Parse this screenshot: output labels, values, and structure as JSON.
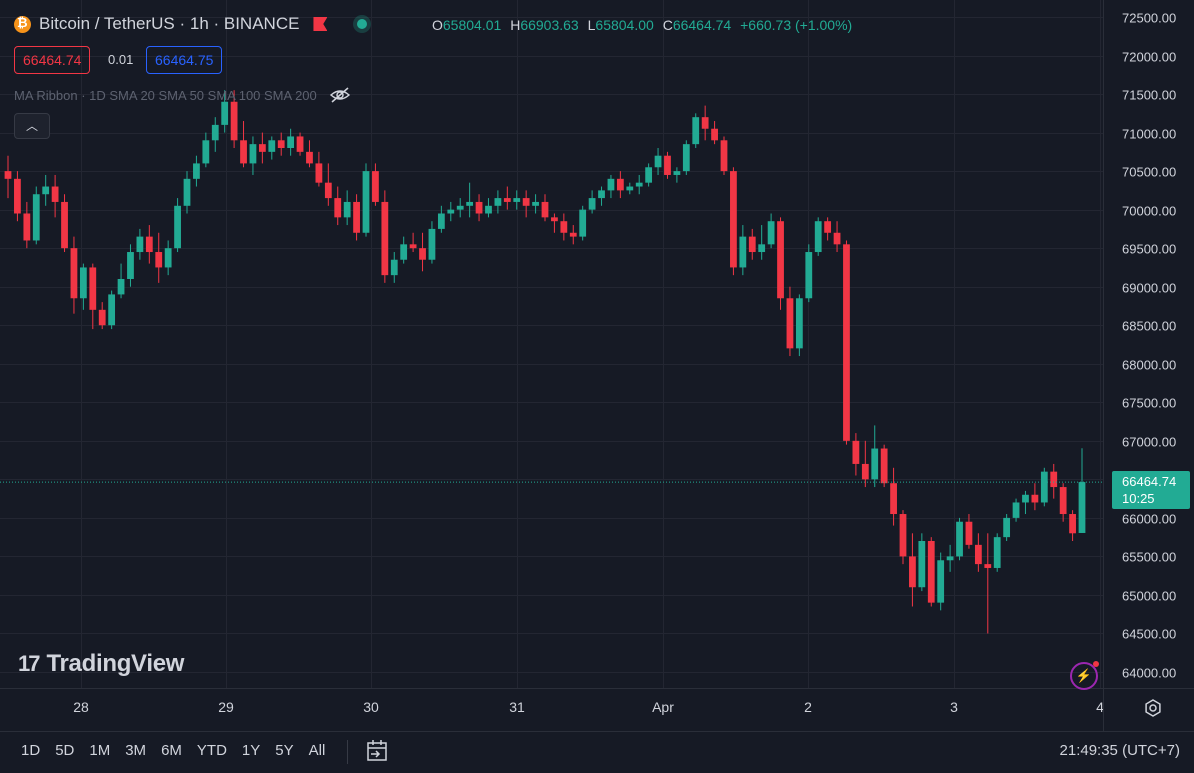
{
  "legend": {
    "symbol": "Bitcoin / TetherUS · 1h · BINANCE",
    "o_label": "O",
    "o_val": "65804.01",
    "h_label": "H",
    "h_val": "66903.63",
    "l_label": "L",
    "l_val": "65804.00",
    "c_label": "C",
    "c_val": "66464.74",
    "change": "+660.73 (+1.00%)"
  },
  "trade": {
    "sell": "66464.74",
    "spread": "0.01",
    "buy": "66464.75"
  },
  "indicator": {
    "label": "MA Ribbon · 1D SMA 20 SMA 50 SMA 100 SMA 200"
  },
  "brand": {
    "name": "TradingView"
  },
  "price_tag": {
    "price": "66464.74",
    "countdown": "10:25"
  },
  "bottom": {
    "ranges": [
      "1D",
      "5D",
      "1M",
      "3M",
      "6M",
      "YTD",
      "1Y",
      "5Y",
      "All"
    ],
    "clock": "21:49:35 (UTC+7)"
  },
  "colors": {
    "up": "#22ab94",
    "down": "#f23645",
    "bg": "#161a25",
    "grid": "#232632"
  },
  "chart_data": {
    "type": "candlestick",
    "y_ticks": [
      72500,
      72000,
      71500,
      71000,
      70500,
      70000,
      69500,
      69000,
      68500,
      68000,
      67500,
      67000,
      66500,
      66000,
      65500,
      65000,
      64500,
      64000
    ],
    "x_ticks": [
      "28",
      "29",
      "30",
      "31",
      "Apr",
      "2",
      "3",
      "4"
    ],
    "last_price": 66464.74,
    "ohlc": [
      [
        70500,
        70700,
        70150,
        70400
      ],
      [
        70400,
        70500,
        69850,
        69950
      ],
      [
        69950,
        70100,
        69500,
        69600
      ],
      [
        69600,
        70300,
        69550,
        70200
      ],
      [
        70200,
        70450,
        70050,
        70300
      ],
      [
        70300,
        70450,
        69900,
        70100
      ],
      [
        70100,
        70200,
        69450,
        69500
      ],
      [
        69500,
        69650,
        68650,
        68850
      ],
      [
        68850,
        69300,
        68700,
        69250
      ],
      [
        69250,
        69300,
        68450,
        68700
      ],
      [
        68700,
        68800,
        68450,
        68500
      ],
      [
        68500,
        68950,
        68450,
        68900
      ],
      [
        68900,
        69300,
        68850,
        69100
      ],
      [
        69100,
        69550,
        69000,
        69450
      ],
      [
        69450,
        69750,
        69350,
        69650
      ],
      [
        69650,
        69800,
        69300,
        69450
      ],
      [
        69450,
        69700,
        69050,
        69250
      ],
      [
        69250,
        69600,
        69150,
        69500
      ],
      [
        69500,
        70150,
        69450,
        70050
      ],
      [
        70050,
        70500,
        69950,
        70400
      ],
      [
        70400,
        70700,
        70300,
        70600
      ],
      [
        70600,
        71000,
        70550,
        70900
      ],
      [
        70900,
        71200,
        70750,
        71100
      ],
      [
        71100,
        71550,
        71000,
        71400
      ],
      [
        71400,
        71550,
        70800,
        70900
      ],
      [
        70900,
        71150,
        70550,
        70600
      ],
      [
        70600,
        70950,
        70450,
        70850
      ],
      [
        70850,
        71000,
        70600,
        70750
      ],
      [
        70750,
        70950,
        70650,
        70900
      ],
      [
        70900,
        71000,
        70700,
        70800
      ],
      [
        70800,
        71050,
        70700,
        70950
      ],
      [
        70950,
        71000,
        70700,
        70750
      ],
      [
        70750,
        70900,
        70550,
        70600
      ],
      [
        70600,
        70750,
        70300,
        70350
      ],
      [
        70350,
        70600,
        70050,
        70150
      ],
      [
        70150,
        70300,
        69800,
        69900
      ],
      [
        69900,
        70250,
        69800,
        70100
      ],
      [
        70100,
        70200,
        69600,
        69700
      ],
      [
        69700,
        70600,
        69650,
        70500
      ],
      [
        70500,
        70600,
        70050,
        70100
      ],
      [
        70100,
        70250,
        69050,
        69150
      ],
      [
        69150,
        69450,
        69050,
        69350
      ],
      [
        69350,
        69650,
        69300,
        69550
      ],
      [
        69550,
        69700,
        69450,
        69500
      ],
      [
        69500,
        69700,
        69200,
        69350
      ],
      [
        69350,
        69850,
        69300,
        69750
      ],
      [
        69750,
        70050,
        69700,
        69950
      ],
      [
        69950,
        70100,
        69850,
        70000
      ],
      [
        70000,
        70150,
        69900,
        70050
      ],
      [
        70050,
        70350,
        69900,
        70100
      ],
      [
        70100,
        70200,
        69850,
        69950
      ],
      [
        69950,
        70150,
        69900,
        70050
      ],
      [
        70050,
        70250,
        69950,
        70150
      ],
      [
        70150,
        70300,
        70000,
        70100
      ],
      [
        70100,
        70250,
        70000,
        70150
      ],
      [
        70150,
        70250,
        69900,
        70050
      ],
      [
        70050,
        70200,
        69950,
        70100
      ],
      [
        70100,
        70200,
        69850,
        69900
      ],
      [
        69900,
        69950,
        69700,
        69850
      ],
      [
        69850,
        69950,
        69600,
        69700
      ],
      [
        69700,
        69800,
        69550,
        69650
      ],
      [
        69650,
        70050,
        69600,
        70000
      ],
      [
        70000,
        70250,
        69950,
        70150
      ],
      [
        70150,
        70300,
        70050,
        70250
      ],
      [
        70250,
        70450,
        70150,
        70400
      ],
      [
        70400,
        70500,
        70150,
        70250
      ],
      [
        70250,
        70350,
        70200,
        70300
      ],
      [
        70300,
        70450,
        70200,
        70350
      ],
      [
        70350,
        70600,
        70300,
        70550
      ],
      [
        70550,
        70800,
        70450,
        70700
      ],
      [
        70700,
        70750,
        70400,
        70450
      ],
      [
        70450,
        70550,
        70350,
        70500
      ],
      [
        70500,
        70900,
        70450,
        70850
      ],
      [
        70850,
        71250,
        70800,
        71200
      ],
      [
        71200,
        71350,
        70900,
        71050
      ],
      [
        71050,
        71150,
        70850,
        70900
      ],
      [
        70900,
        70950,
        70450,
        70500
      ],
      [
        70500,
        70550,
        69150,
        69250
      ],
      [
        69250,
        69800,
        69150,
        69650
      ],
      [
        69650,
        69750,
        69350,
        69450
      ],
      [
        69450,
        69800,
        69350,
        69550
      ],
      [
        69550,
        69950,
        69500,
        69850
      ],
      [
        69850,
        69900,
        68700,
        68850
      ],
      [
        68850,
        69000,
        68100,
        68200
      ],
      [
        68200,
        68900,
        68100,
        68850
      ],
      [
        68850,
        69550,
        68800,
        69450
      ],
      [
        69450,
        69900,
        69400,
        69850
      ],
      [
        69850,
        69900,
        69600,
        69700
      ],
      [
        69700,
        69850,
        69450,
        69550
      ],
      [
        69550,
        69600,
        66950,
        67000
      ],
      [
        67000,
        67100,
        66550,
        66700
      ],
      [
        66700,
        67000,
        66400,
        66500
      ],
      [
        66500,
        67200,
        66400,
        66900
      ],
      [
        66900,
        66950,
        66400,
        66450
      ],
      [
        66450,
        66650,
        65900,
        66050
      ],
      [
        66050,
        66100,
        65400,
        65500
      ],
      [
        65500,
        65800,
        64850,
        65100
      ],
      [
        65100,
        65800,
        65050,
        65700
      ],
      [
        65700,
        65750,
        64850,
        64900
      ],
      [
        64900,
        65550,
        64800,
        65450
      ],
      [
        65450,
        65650,
        65300,
        65500
      ],
      [
        65500,
        66000,
        65450,
        65950
      ],
      [
        65950,
        66050,
        65600,
        65650
      ],
      [
        65650,
        65800,
        65300,
        65400
      ],
      [
        65400,
        65800,
        64500,
        65350
      ],
      [
        65350,
        65800,
        65300,
        65750
      ],
      [
        65750,
        66050,
        65700,
        66000
      ],
      [
        66000,
        66250,
        65950,
        66200
      ],
      [
        66200,
        66350,
        66050,
        66300
      ],
      [
        66300,
        66450,
        66100,
        66200
      ],
      [
        66200,
        66650,
        66150,
        66600
      ],
      [
        66600,
        66700,
        66250,
        66400
      ],
      [
        66400,
        66450,
        65950,
        66050
      ],
      [
        66050,
        66100,
        65700,
        65800
      ],
      [
        65804.01,
        66903.63,
        65804.0,
        66464.74
      ]
    ]
  }
}
